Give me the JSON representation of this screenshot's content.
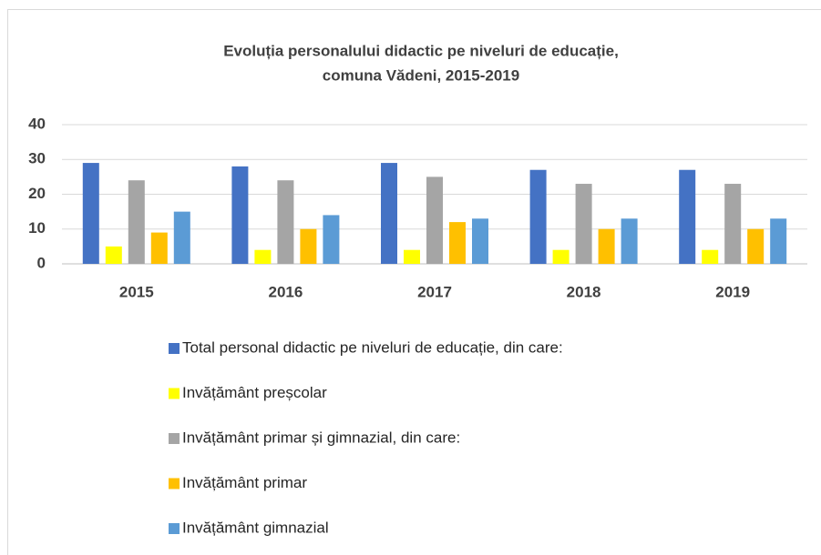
{
  "chart_data": {
    "type": "bar",
    "title": [
      "Evoluția personalului didactic pe niveluri de educație,",
      "comuna Vădeni, 2015-2019"
    ],
    "categories": [
      "2015",
      "2016",
      "2017",
      "2018",
      "2019"
    ],
    "series": [
      {
        "name": "Total personal didactic pe niveluri de educație, din care:",
        "color": "#4472c4",
        "values": [
          29,
          28,
          29,
          27,
          27
        ]
      },
      {
        "name": "Invățământ preșcolar",
        "color": "#ffff00",
        "values": [
          5,
          4,
          4,
          4,
          4
        ]
      },
      {
        "name": "Invățământ primar și gimnazial, din care:",
        "color": "#a5a5a5",
        "values": [
          24,
          24,
          25,
          23,
          23
        ]
      },
      {
        "name": "Invățământ primar",
        "color": "#ffc000",
        "values": [
          9,
          10,
          12,
          10,
          10
        ]
      },
      {
        "name": "Invățământ gimnazial",
        "color": "#5b9bd5",
        "values": [
          15,
          14,
          13,
          13,
          13
        ]
      }
    ],
    "ylim": [
      0,
      40
    ],
    "yticks": [
      0,
      10,
      20,
      30,
      40
    ],
    "grid": true,
    "legend": "bottom"
  }
}
